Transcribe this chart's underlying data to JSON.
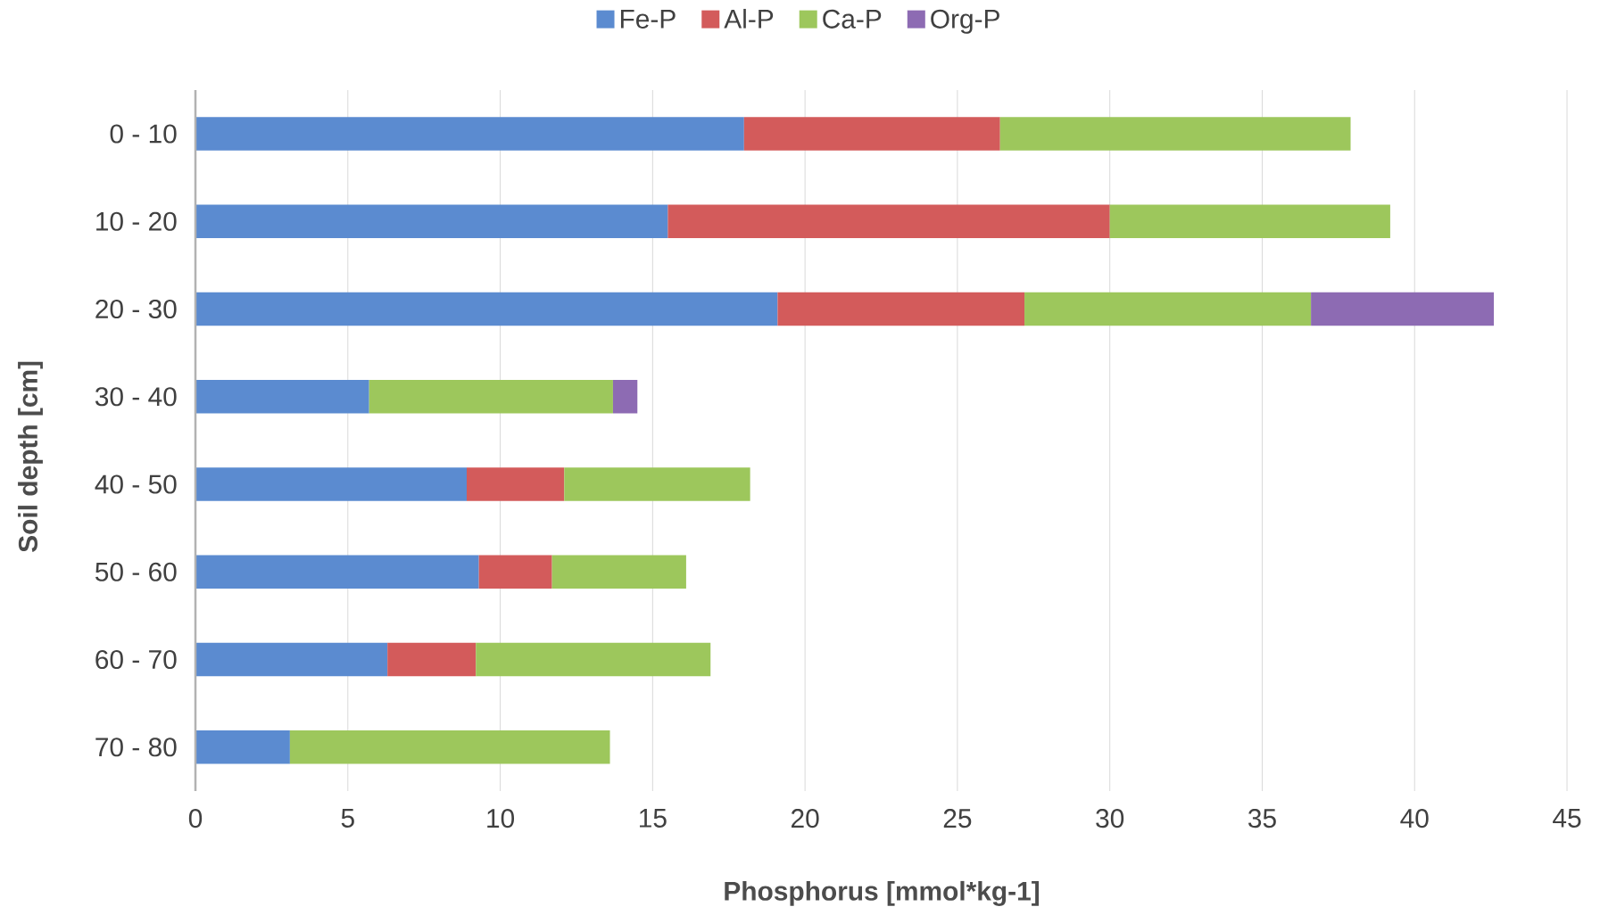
{
  "chart_data": {
    "type": "bar",
    "orientation": "horizontal",
    "stacked": true,
    "xlabel": "Phosphorus [mmol*kg-1]",
    "ylabel": "Soil depth [cm]",
    "categories": [
      "0 - 10",
      "10 - 20",
      "20 - 30",
      "30 - 40",
      "40 - 50",
      "50 - 60",
      "60 - 70",
      "70 - 80"
    ],
    "series": [
      {
        "name": "Fe-P",
        "color": "#5b8bd0",
        "values": [
          18.0,
          15.5,
          19.1,
          5.7,
          8.9,
          9.3,
          6.3,
          3.1
        ]
      },
      {
        "name": "Al-P",
        "color": "#d35b5b",
        "values": [
          8.4,
          14.5,
          8.1,
          null,
          3.2,
          2.4,
          2.9,
          null
        ]
      },
      {
        "name": "Ca-P",
        "color": "#9dc75c",
        "values": [
          11.5,
          9.2,
          9.4,
          8.0,
          6.1,
          4.4,
          7.7,
          10.5
        ]
      },
      {
        "name": "Org-P",
        "color": "#8d6bb3",
        "values": [
          null,
          null,
          6.0,
          0.8,
          null,
          null,
          null,
          null
        ]
      }
    ],
    "xlim": [
      0,
      45
    ],
    "xticks": [
      0,
      5,
      10,
      15,
      20,
      25,
      30,
      35,
      40,
      45
    ],
    "grid": "x",
    "legend": "top"
  }
}
